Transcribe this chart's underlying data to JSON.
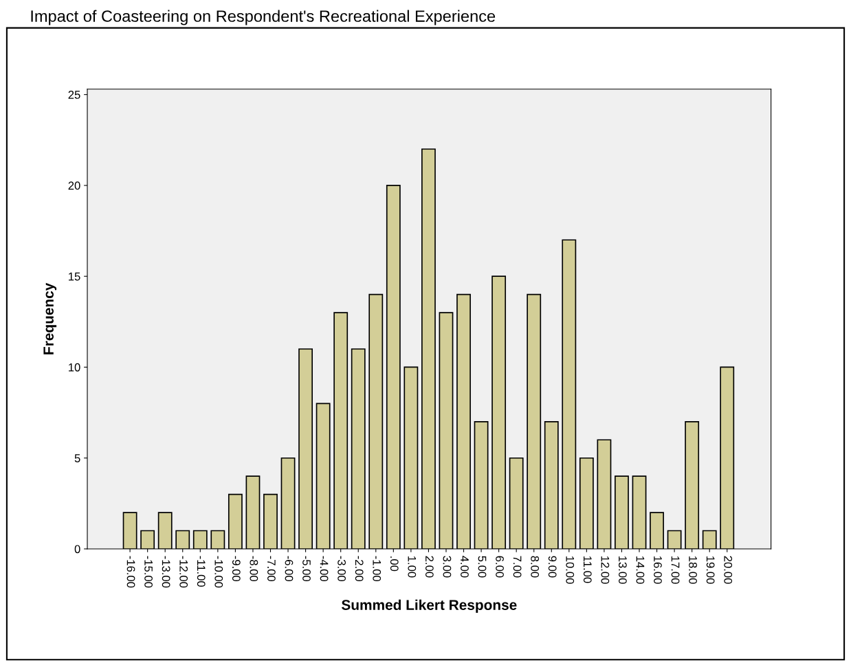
{
  "chart_data": {
    "type": "bar",
    "title": "Impact of Coasteering on Respondent's Recreational Experience",
    "xlabel": "Summed Likert Response",
    "ylabel": "Frequency",
    "categories": [
      "-16.00",
      "-15.00",
      "-13.00",
      "-12.00",
      "-11.00",
      "-10.00",
      "-9.00",
      "-8.00",
      "-7.00",
      "-6.00",
      "-5.00",
      "-4.00",
      "-3.00",
      "-2.00",
      "-1.00",
      ".00",
      "1.00",
      "2.00",
      "3.00",
      "4.00",
      "5.00",
      "6.00",
      "7.00",
      "8.00",
      "9.00",
      "10.00",
      "11.00",
      "12.00",
      "13.00",
      "14.00",
      "16.00",
      "17.00",
      "18.00",
      "19.00",
      "20.00"
    ],
    "values": [
      2,
      1,
      2,
      1,
      1,
      1,
      3,
      4,
      3,
      5,
      11,
      8,
      13,
      11,
      14,
      20,
      10,
      22,
      13,
      14,
      7,
      15,
      5,
      14,
      7,
      17,
      5,
      6,
      4,
      4,
      2,
      1,
      7,
      1,
      10
    ],
    "color": "#d3ce97",
    "ylim": [
      0,
      25.3
    ],
    "yticks": [
      0,
      5,
      10,
      15,
      20,
      25
    ],
    "grid": false,
    "legend": false
  }
}
